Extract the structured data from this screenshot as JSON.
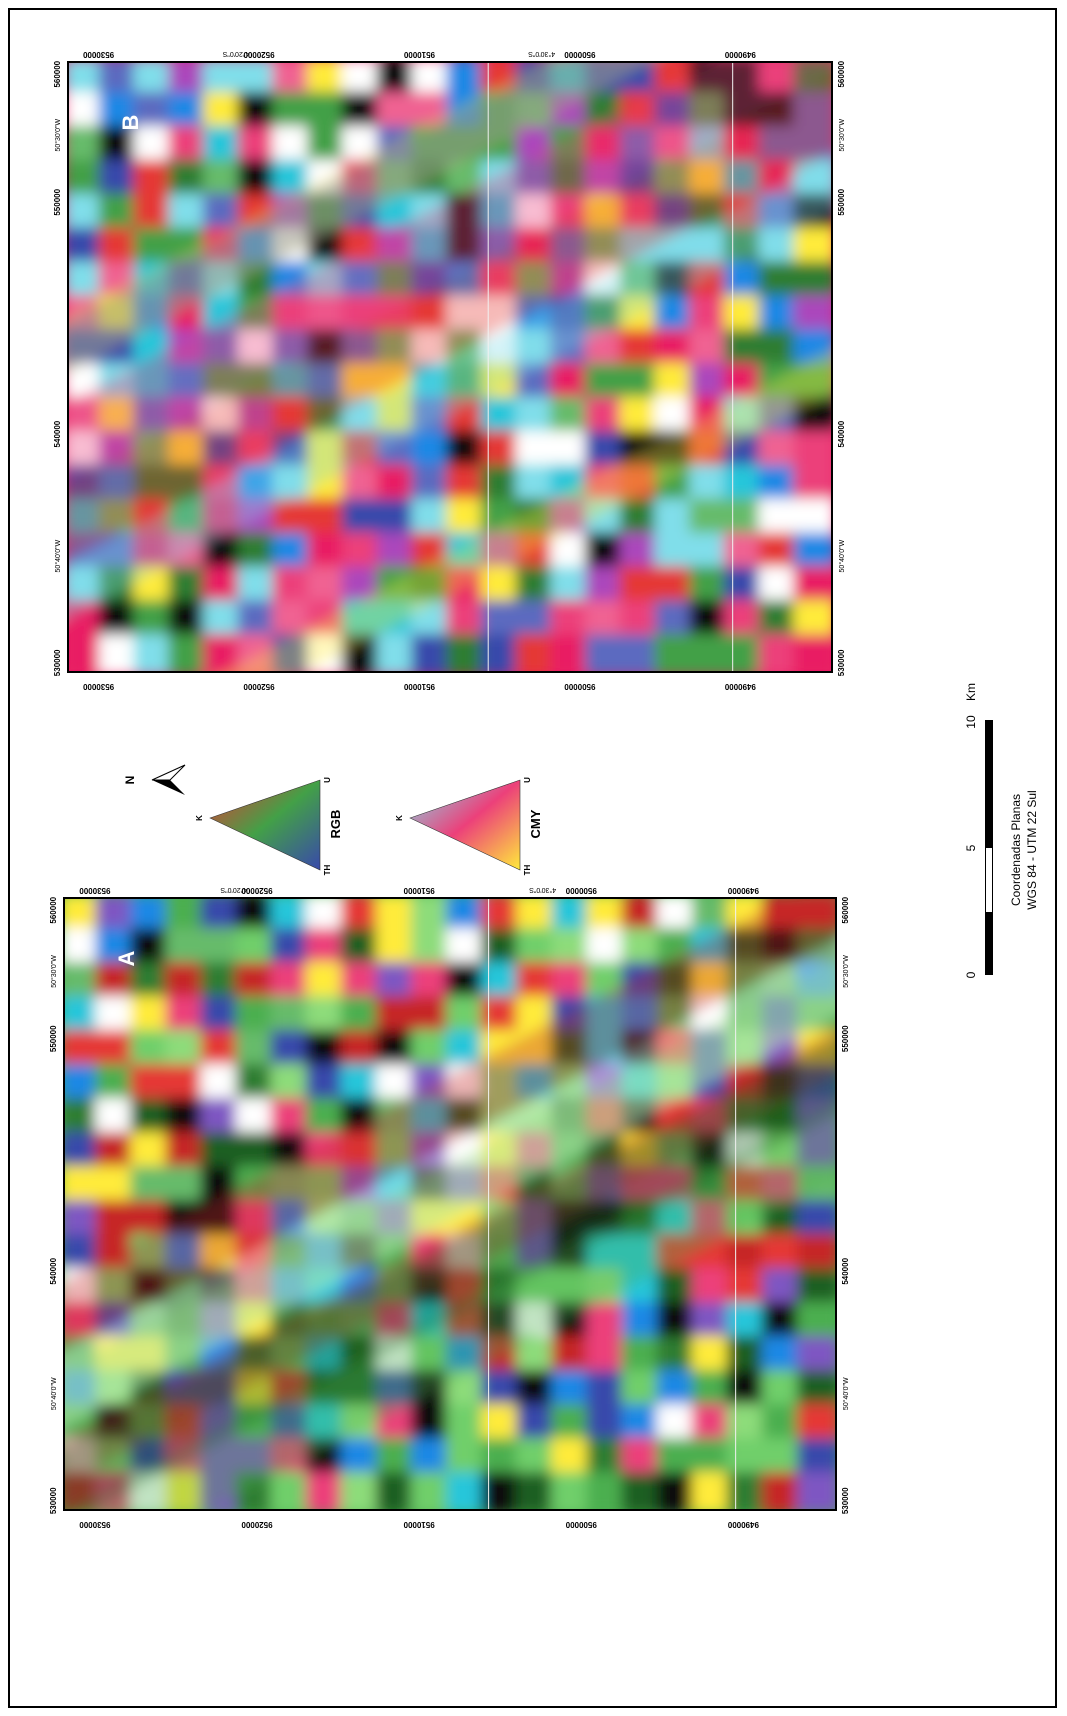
{
  "panels": [
    {
      "id": "A",
      "label": "A",
      "palette": [
        "#4caf50",
        "#6fcf6a",
        "#8ddc7a",
        "#2e7d32",
        "#1b5e20",
        "#e53935",
        "#c62828",
        "#ffeb3b",
        "#1e88e5",
        "#3949ab",
        "#7e57c2",
        "#ec407a",
        "#26c6da",
        "#ffffff",
        "#111111",
        "#66bb6a"
      ]
    },
    {
      "id": "B",
      "label": "B",
      "palette": [
        "#e91e63",
        "#ec407a",
        "#f06292",
        "#3949ab",
        "#5c6bc0",
        "#1e88e5",
        "#43a047",
        "#2e7d32",
        "#66bb6a",
        "#26c6da",
        "#80deea",
        "#ffffff",
        "#e53935",
        "#111111",
        "#ffeb3b",
        "#ab47bc"
      ]
    }
  ],
  "easting_ticks": [
    "530",
    "540",
    "550",
    "560"
  ],
  "easting_suffix": "000",
  "northing_ticks": [
    "953",
    "952",
    "951",
    "950",
    "949"
  ],
  "northing_suffix": "0000",
  "lon_labels": [
    "50°40'0\"W",
    "50°30'0\"W"
  ],
  "lat_labels": [
    "4°20'0\"S",
    "4°30'0\"S"
  ],
  "north_arrow": {
    "letter": "N"
  },
  "legend": {
    "rgb": {
      "title": "RGB",
      "apex_k": "K",
      "apex_th": "TH",
      "apex_u": "U"
    },
    "cmy": {
      "title": "CMY",
      "apex_k": "K",
      "apex_th": "TH",
      "apex_u": "U"
    }
  },
  "scalebar": {
    "ticks": [
      "0",
      "5",
      "10"
    ],
    "unit": "Km"
  },
  "projection": {
    "line1": "Coordenadas Planas",
    "line2": "WGS 84 - UTM 22 Sul"
  },
  "colors": {
    "frame": "#000000",
    "gridline": "#f2f2f2"
  }
}
